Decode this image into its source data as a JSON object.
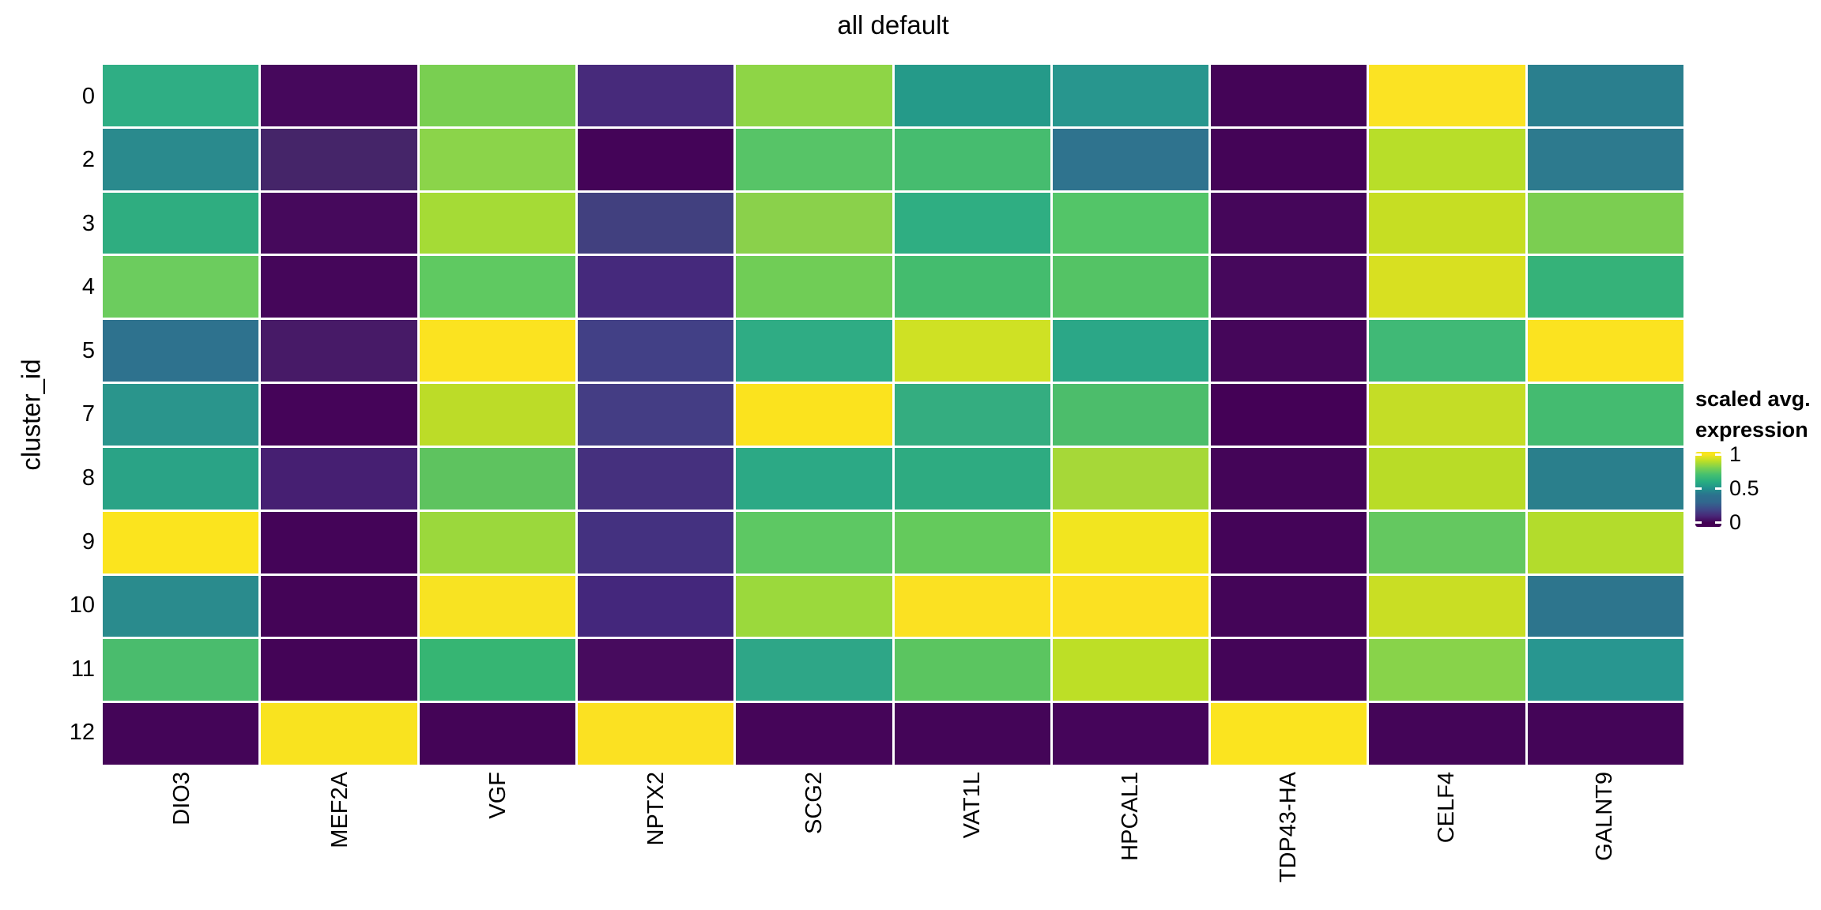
{
  "title": "all default",
  "y_axis_label": "cluster_id",
  "legend": {
    "title_line1": "scaled avg.",
    "title_line2": "expression",
    "ticks": [
      "1",
      "0.5",
      "0"
    ]
  },
  "colors": {
    "background": "#ffffff",
    "text": "#000000",
    "viridis_low": "#440154",
    "viridis_mid": "#21918c",
    "viridis_high": "#fde725"
  },
  "chart_data": {
    "type": "heatmap",
    "title": "all default",
    "xlabel": "",
    "ylabel": "cluster_id",
    "legend_title": "scaled avg. expression",
    "colormap": "viridis",
    "vmin": 0,
    "vmax": 1,
    "x_categories": [
      "DIO3",
      "MEF2A",
      "VGF",
      "NPTX2",
      "SCG2",
      "VAT1L",
      "HPCAL1",
      "TDP43-HA",
      "CELF4",
      "GALNT9"
    ],
    "y_categories": [
      "0",
      "2",
      "3",
      "4",
      "5",
      "7",
      "8",
      "9",
      "10",
      "11",
      "12"
    ],
    "values": [
      [
        0.62,
        0.02,
        0.79,
        0.1,
        0.84,
        0.55,
        0.52,
        0.0,
        0.99,
        0.38
      ],
      [
        0.45,
        0.08,
        0.82,
        0.0,
        0.72,
        0.68,
        0.34,
        0.0,
        0.9,
        0.36
      ],
      [
        0.62,
        0.02,
        0.87,
        0.17,
        0.82,
        0.62,
        0.72,
        0.01,
        0.92,
        0.79
      ],
      [
        0.77,
        0.01,
        0.73,
        0.1,
        0.77,
        0.68,
        0.72,
        0.02,
        0.94,
        0.64
      ],
      [
        0.33,
        0.06,
        1.0,
        0.17,
        0.61,
        0.93,
        0.58,
        0.01,
        0.67,
        1.0
      ],
      [
        0.52,
        0.01,
        0.9,
        0.16,
        1.0,
        0.62,
        0.69,
        0.0,
        0.92,
        0.68
      ],
      [
        0.58,
        0.08,
        0.73,
        0.13,
        0.6,
        0.62,
        0.87,
        0.01,
        0.9,
        0.38
      ],
      [
        1.0,
        0.0,
        0.86,
        0.14,
        0.74,
        0.76,
        0.97,
        0.0,
        0.75,
        0.89
      ],
      [
        0.46,
        0.0,
        0.99,
        0.1,
        0.86,
        1.0,
        1.0,
        0.01,
        0.92,
        0.35
      ],
      [
        0.69,
        0.0,
        0.64,
        0.03,
        0.59,
        0.73,
        0.91,
        0.01,
        0.82,
        0.51
      ],
      [
        0.01,
        0.99,
        0.0,
        1.0,
        0.01,
        0.01,
        0.01,
        1.0,
        0.01,
        0.01
      ]
    ],
    "cell_colors": [
      [
        "#2fae84",
        "#46085c",
        "#79cf51",
        "#472a7b",
        "#8ed546",
        "#259a89",
        "#28968e",
        "#440457",
        "#fbe323",
        "#2a7f8e"
      ],
      [
        "#2a8a8d",
        "#452569",
        "#8bd44a",
        "#440458",
        "#57c467",
        "#46bc6f",
        "#2f738e",
        "#440457",
        "#b8de29",
        "#2d7a8e"
      ],
      [
        "#2fad80",
        "#46095c",
        "#a5db36",
        "#41407f",
        "#8ad14b",
        "#2fae82",
        "#53c568",
        "#45065a",
        "#c6de23",
        "#7bce51"
      ],
      [
        "#6ccc5e",
        "#45065a",
        "#5fc961",
        "#45297c",
        "#70cd56",
        "#44bc6e",
        "#54c365",
        "#46085c",
        "#d8e021",
        "#35b279"
      ],
      [
        "#2e728e",
        "#471a67",
        "#fbe320",
        "#424086",
        "#2fac84",
        "#cfe124",
        "#2ba787",
        "#45065a",
        "#40b976",
        "#fbe320"
      ],
      [
        "#2a958c",
        "#450459",
        "#bcdc28",
        "#443d84",
        "#fbe31e",
        "#34ad80",
        "#4cbd6b",
        "#440156",
        "#c4dd26",
        "#44bb70"
      ],
      [
        "#2aa386",
        "#461f72",
        "#5ec35f",
        "#45307e",
        "#2ca985",
        "#2eab81",
        "#a6d838",
        "#440558",
        "#b9dc27",
        "#2a7f8c"
      ],
      [
        "#fbe41e",
        "#440458",
        "#9bd83c",
        "#443180",
        "#5dc863",
        "#64ca5c",
        "#f2e51f",
        "#440458",
        "#64c860",
        "#b3dc2c"
      ],
      [
        "#2a8b8d",
        "#440457",
        "#f8e322",
        "#44277c",
        "#9bd93c",
        "#fbe122",
        "#fbe122",
        "#440558",
        "#c9de24",
        "#2d758d"
      ],
      [
        "#4abc6d",
        "#440457",
        "#36b573",
        "#470b5e",
        "#2ea687",
        "#5bc560",
        "#bddf26",
        "#440558",
        "#88d34a",
        "#289690"
      ],
      [
        "#440558",
        "#f9e31f",
        "#440457",
        "#fbe122",
        "#450559",
        "#440558",
        "#45055a",
        "#fbe41f",
        "#440558",
        "#440558"
      ]
    ]
  }
}
